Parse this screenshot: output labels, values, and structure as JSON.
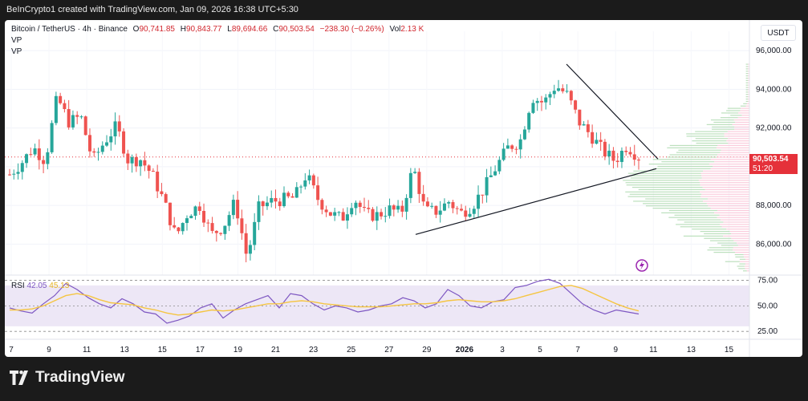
{
  "credit": "BeInCrypto1 created with TradingView.com, Jan 09, 2026 16:38 UTC+5:30",
  "header": {
    "symbol": "Bitcoin / TetherUS · 4h · Binance",
    "open_label": "O",
    "open": "90,741.85",
    "high_label": "H",
    "high": "90,843.77",
    "low_label": "L",
    "low": "89,694.66",
    "close_label": "C",
    "close": "90,503.54",
    "change": "−238.30 (−0.26%)",
    "vol_label": "Vol",
    "vol": "2.13 K",
    "indicators": [
      "VP",
      "VP"
    ]
  },
  "currency_button": "USDT",
  "last_price": {
    "price": "90,503.54",
    "countdown": "51:20"
  },
  "rsi": {
    "label": "RSI",
    "value": "42.05",
    "ma_value": "45.13"
  },
  "footer": {
    "brand": "TradingView"
  },
  "colors": {
    "up": "#26a69a",
    "down": "#ef5350",
    "rsi_line": "#7e57c2",
    "rsi_ma": "#f5c542",
    "rsi_band": "#ede7f6"
  },
  "chart_data": [
    {
      "type": "candlestick",
      "title": "Bitcoin / TetherUS · 4h · Binance",
      "x_ticks": [
        "7",
        "9",
        "11",
        "13",
        "15",
        "17",
        "19",
        "21",
        "23",
        "25",
        "27",
        "29",
        "2026",
        "3",
        "5",
        "7",
        "9",
        "11",
        "13",
        "15"
      ],
      "y_ticks": [
        86000,
        88000,
        90000,
        92000,
        94000,
        96000
      ],
      "y_tick_labels": [
        "86,000.00",
        "88,000.00",
        "90,000.00",
        "92,000.00",
        "94,000.00",
        "96,000.00"
      ],
      "ylim": [
        84400,
        97000
      ],
      "close_path": [
        {
          "tick": "7",
          "price": 89600
        },
        {
          "tick": "8",
          "price": 90200
        },
        {
          "tick": "9",
          "price": 91000
        },
        {
          "tick": "9.6",
          "price": 90300
        },
        {
          "tick": "10",
          "price": 93600
        },
        {
          "tick": "10.6",
          "price": 92300
        },
        {
          "tick": "11",
          "price": 92600
        },
        {
          "tick": "11.6",
          "price": 90300
        },
        {
          "tick": "12",
          "price": 91300
        },
        {
          "tick": "12.6",
          "price": 92100
        },
        {
          "tick": "13",
          "price": 90300
        },
        {
          "tick": "14",
          "price": 90400
        },
        {
          "tick": "15",
          "price": 89600
        },
        {
          "tick": "15.5",
          "price": 88200
        },
        {
          "tick": "16",
          "price": 86400
        },
        {
          "tick": "16.5",
          "price": 87600
        },
        {
          "tick": "17",
          "price": 88000
        },
        {
          "tick": "17.6",
          "price": 86500
        },
        {
          "tick": "18",
          "price": 86900
        },
        {
          "tick": "18.6",
          "price": 88200
        },
        {
          "tick": "19",
          "price": 85300
        },
        {
          "tick": "19.6",
          "price": 87900
        },
        {
          "tick": "20",
          "price": 88200
        },
        {
          "tick": "21",
          "price": 88300
        },
        {
          "tick": "22",
          "price": 88400
        },
        {
          "tick": "22.6",
          "price": 89600
        },
        {
          "tick": "23",
          "price": 88300
        },
        {
          "tick": "24",
          "price": 87600
        },
        {
          "tick": "25",
          "price": 87300
        },
        {
          "tick": "26",
          "price": 88400
        },
        {
          "tick": "26.6",
          "price": 87500
        },
        {
          "tick": "27",
          "price": 87500
        },
        {
          "tick": "28",
          "price": 87800
        },
        {
          "tick": "28.6",
          "price": 87600
        },
        {
          "tick": "29",
          "price": 90000
        },
        {
          "tick": "29.5",
          "price": 87700
        },
        {
          "tick": "30",
          "price": 87700
        },
        {
          "tick": "31",
          "price": 88200
        },
        {
          "tick": "31.6",
          "price": 87600
        },
        {
          "tick": "2026",
          "price": 88000
        },
        {
          "tick": "2",
          "price": 88900
        },
        {
          "tick": "3",
          "price": 90000
        },
        {
          "tick": "3.6",
          "price": 91000
        },
        {
          "tick": "4",
          "price": 91300
        },
        {
          "tick": "4.6",
          "price": 93600
        },
        {
          "tick": "5",
          "price": 93300
        },
        {
          "tick": "5.6",
          "price": 94200
        },
        {
          "tick": "6",
          "price": 93700
        },
        {
          "tick": "6.6",
          "price": 92300
        },
        {
          "tick": "7",
          "price": 91600
        },
        {
          "tick": "7.6",
          "price": 90800
        },
        {
          "tick": "8",
          "price": 90300
        },
        {
          "tick": "8.6",
          "price": 91100
        },
        {
          "tick": "9",
          "price": 90500
        }
      ],
      "last_price": 90503.54
    },
    {
      "type": "line",
      "title": "RSI",
      "y_ticks": [
        25,
        50,
        75
      ],
      "y_tick_labels": [
        "25.00",
        "50.00",
        "75.00"
      ],
      "ylim": [
        22,
        77
      ],
      "band": [
        30,
        70
      ],
      "series": [
        {
          "name": "RSI",
          "values": [
            48,
            45,
            43,
            52,
            60,
            72,
            66,
            58,
            52,
            48,
            57,
            52,
            44,
            42,
            33,
            36,
            40,
            48,
            52,
            38,
            46,
            52,
            56,
            60,
            48,
            62,
            60,
            52,
            46,
            50,
            48,
            44,
            46,
            50,
            52,
            58,
            55,
            48,
            52,
            66,
            60,
            50,
            48,
            54,
            56,
            68,
            70,
            74,
            76,
            72,
            62,
            52,
            46,
            42,
            46,
            44,
            42
          ]
        },
        {
          "name": "RSI-based MA",
          "values": [
            46,
            46,
            47,
            50,
            55,
            60,
            62,
            60,
            56,
            53,
            52,
            51,
            48,
            46,
            43,
            41,
            42,
            44,
            46,
            45,
            46,
            48,
            50,
            52,
            52,
            54,
            55,
            54,
            52,
            51,
            50,
            49,
            49,
            49,
            50,
            51,
            52,
            52,
            53,
            55,
            56,
            55,
            54,
            54,
            55,
            57,
            60,
            63,
            66,
            69,
            70,
            67,
            62,
            57,
            52,
            48,
            45
          ]
        }
      ]
    }
  ]
}
